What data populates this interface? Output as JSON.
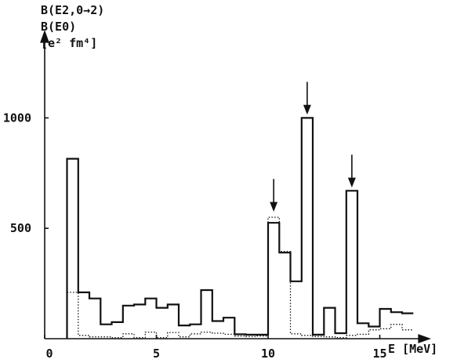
{
  "chart_data": {
    "type": "line",
    "title_lines": [
      "B(E2,0→2)",
      "B(E0)",
      "[e² fm⁴]"
    ],
    "xlabel": "E [MeV]",
    "ylabel": "",
    "xlim": [
      0,
      18
    ],
    "ylim": [
      0,
      1400
    ],
    "x_ticks": [
      0,
      5,
      10,
      15
    ],
    "y_ticks": [
      500,
      1000
    ],
    "grid": false,
    "series": [
      {
        "style": "solid",
        "edges": [
          1.0,
          1.5,
          2.0,
          2.5,
          3.0,
          3.5,
          4.0,
          4.5,
          5.0,
          5.5,
          6.0,
          6.5,
          7.0,
          7.5,
          8.0,
          8.5,
          9.0,
          9.5,
          10.0,
          10.5,
          11.0,
          11.5,
          12.0,
          12.5,
          13.0,
          13.5,
          14.0,
          14.5,
          15.0,
          15.5,
          16.0,
          16.5
        ],
        "values": [
          815,
          210,
          182,
          65,
          75,
          150,
          155,
          182,
          140,
          155,
          60,
          65,
          220,
          80,
          95,
          20,
          18,
          18,
          525,
          390,
          260,
          1000,
          18,
          140,
          25,
          670,
          70,
          55,
          135,
          120,
          115
        ]
      },
      {
        "style": "dotted",
        "edges": [
          1.0,
          1.5,
          2.0,
          3.0,
          3.5,
          4.0,
          4.5,
          5.0,
          5.5,
          6.0,
          6.5,
          7.0,
          7.5,
          8.0,
          8.5,
          9.0,
          9.5,
          10.0,
          10.5,
          11.0,
          11.5,
          12.0,
          12.5,
          13.0,
          13.5,
          14.0,
          14.5,
          15.0,
          15.5,
          16.0,
          16.5
        ],
        "values": [
          210,
          15,
          8,
          5,
          22,
          5,
          30,
          5,
          28,
          8,
          22,
          30,
          25,
          20,
          12,
          10,
          12,
          550,
          395,
          22,
          15,
          10,
          8,
          5,
          15,
          20,
          40,
          45,
          65,
          40
        ]
      }
    ],
    "arrows_at_x": [
      10.25,
      11.75,
      13.75
    ]
  }
}
